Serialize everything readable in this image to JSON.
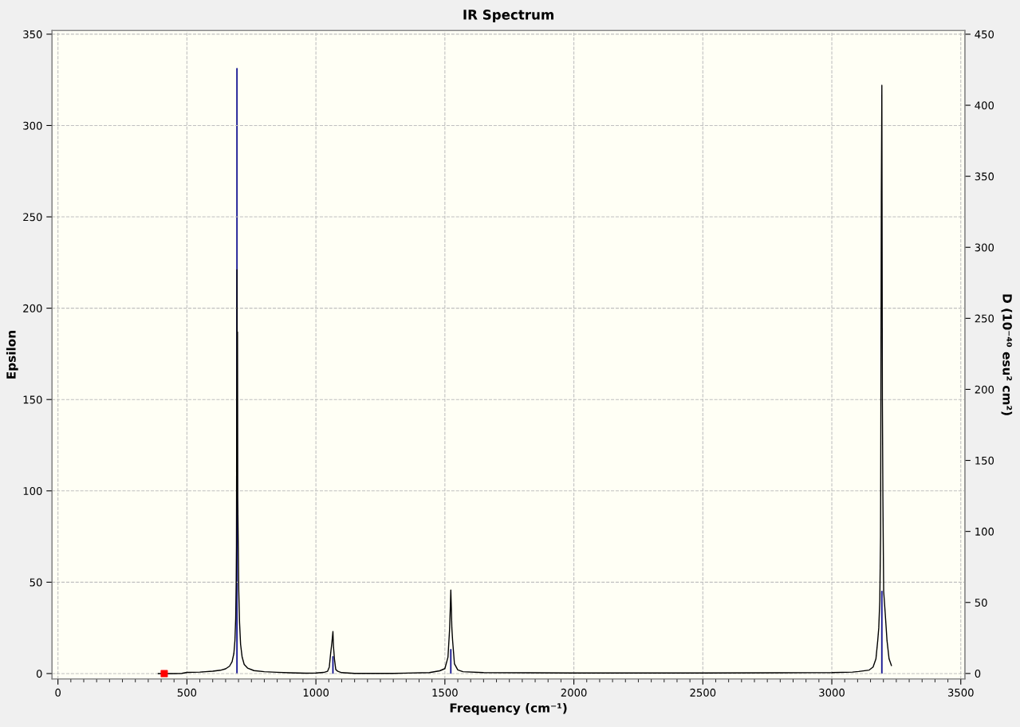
{
  "chart_data": {
    "type": "line",
    "title": "IR Spectrum",
    "xlabel": "Frequency (cm⁻¹)",
    "ylabel": "Epsilon",
    "y2label": "D (10⁻⁴⁰ esu² cm²)",
    "xlim": [
      -23,
      3516
    ],
    "ylim": [
      -3,
      352
    ],
    "y2lim": [
      -3.9,
      452.6
    ],
    "xticks": [
      0,
      {
        "value": 50,
        "label": null
      },
      {
        "value": 100,
        "label": null
      },
      {
        "value": 150,
        "label": null
      },
      {
        "value": 200,
        "label": null
      },
      {
        "value": 250,
        "label": null
      },
      {
        "value": 300,
        "label": null
      },
      {
        "value": 350,
        "label": null
      },
      {
        "value": 400,
        "label": null
      },
      {
        "value": 450,
        "label": null
      },
      500,
      {
        "value": 550,
        "label": null
      },
      {
        "value": 600,
        "label": null
      },
      {
        "value": 650,
        "label": null
      },
      {
        "value": 700,
        "label": null
      },
      {
        "value": 750,
        "label": null
      },
      {
        "value": 800,
        "label": null
      },
      {
        "value": 850,
        "label": null
      },
      {
        "value": 900,
        "label": null
      },
      {
        "value": 950,
        "label": null
      },
      1000,
      {
        "value": 1050,
        "label": null
      },
      {
        "value": 1100,
        "label": null
      },
      {
        "value": 1150,
        "label": null
      },
      {
        "value": 1200,
        "label": null
      },
      {
        "value": 1250,
        "label": null
      },
      {
        "value": 1300,
        "label": null
      },
      {
        "value": 1350,
        "label": null
      },
      {
        "value": 1400,
        "label": null
      },
      {
        "value": 1450,
        "label": null
      },
      1500,
      {
        "value": 1550,
        "label": null
      },
      {
        "value": 1600,
        "label": null
      },
      {
        "value": 1650,
        "label": null
      },
      {
        "value": 1700,
        "label": null
      },
      {
        "value": 1750,
        "label": null
      },
      {
        "value": 1800,
        "label": null
      },
      {
        "value": 1850,
        "label": null
      },
      {
        "value": 1900,
        "label": null
      },
      {
        "value": 1950,
        "label": null
      },
      2000,
      {
        "value": 2050,
        "label": null
      },
      {
        "value": 2100,
        "label": null
      },
      {
        "value": 2150,
        "label": null
      },
      {
        "value": 2200,
        "label": null
      },
      {
        "value": 2250,
        "label": null
      },
      {
        "value": 2300,
        "label": null
      },
      {
        "value": 2350,
        "label": null
      },
      {
        "value": 2400,
        "label": null
      },
      {
        "value": 2450,
        "label": null
      },
      2500,
      {
        "value": 2550,
        "label": null
      },
      {
        "value": 2600,
        "label": null
      },
      {
        "value": 2650,
        "label": null
      },
      {
        "value": 2700,
        "label": null
      },
      {
        "value": 2750,
        "label": null
      },
      {
        "value": 2800,
        "label": null
      },
      {
        "value": 2850,
        "label": null
      },
      {
        "value": 2900,
        "label": null
      },
      {
        "value": 2950,
        "label": null
      },
      3000,
      {
        "value": 3050,
        "label": null
      },
      {
        "value": 3100,
        "label": null
      },
      {
        "value": 3150,
        "label": null
      },
      {
        "value": 3200,
        "label": null
      },
      {
        "value": 3250,
        "label": null
      },
      {
        "value": 3300,
        "label": null
      },
      {
        "value": 3350,
        "label": null
      },
      {
        "value": 3400,
        "label": null
      },
      {
        "value": 3450,
        "label": null
      },
      3500
    ],
    "yticks": [
      0,
      50,
      100,
      150,
      200,
      250,
      300,
      350
    ],
    "y2ticks": [
      0,
      50,
      100,
      150,
      200,
      250,
      300,
      350,
      400,
      450
    ],
    "grid": true,
    "series": [
      {
        "type": "bar",
        "axis": "y2",
        "color": "#00008b",
        "x": [
          694,
          1066,
          1523,
          3194
        ],
        "values": [
          426,
          12,
          17,
          58
        ]
      },
      {
        "axis": "y",
        "color": "#000000",
        "x": [
          389,
          450,
          480,
          500,
          550,
          600,
          630,
          650,
          665,
          675,
          682,
          686,
          689,
          691,
          692,
          693,
          694,
          695,
          696,
          697,
          699,
          701,
          704,
          708,
          714,
          722,
          735,
          760,
          800,
          850,
          900,
          960,
          1000,
          1030,
          1045,
          1052,
          1057,
          1062,
          1066,
          1068,
          1072,
          1077,
          1085,
          1100,
          1150,
          1300,
          1440,
          1480,
          1500,
          1512,
          1518,
          1521,
          1523,
          1525,
          1527,
          1530,
          1537,
          1550,
          1570,
          1650,
          2000,
          2500,
          2800,
          3000,
          3080,
          3104,
          3145,
          3160,
          3171,
          3178,
          3182,
          3186,
          3189,
          3192,
          3194,
          3196,
          3198,
          3201,
          3207,
          3214,
          3222,
          3231
        ],
        "values": [
          0.0,
          0.0,
          0.1,
          0.6,
          0.8,
          1.3,
          1.8,
          2.6,
          4.0,
          6.5,
          11,
          18,
          30,
          50,
          70,
          145,
          221,
          145,
          187,
          96,
          70,
          45,
          28,
          16,
          9,
          5,
          3,
          1.6,
          1.0,
          0.7,
          0.4,
          0.2,
          0.3,
          0.6,
          1.2,
          3.6,
          10.8,
          17,
          23,
          15,
          7.8,
          2.2,
          1.2,
          0.5,
          0.1,
          0.1,
          0.5,
          1.5,
          2.7,
          9,
          23.5,
          36,
          45.7,
          36,
          25,
          18,
          5.4,
          2,
          1.0,
          0.5,
          0.3,
          0.3,
          0.4,
          0.5,
          0.8,
          1.1,
          1.9,
          3.6,
          8,
          18,
          25,
          40,
          75,
          262,
          322,
          150,
          96,
          45,
          33,
          18,
          8,
          4.4
        ]
      },
      {
        "type": "scatter",
        "axis": "y",
        "color": "#ff0000",
        "marker": "square",
        "x": [
          412
        ],
        "values": [
          0
        ]
      }
    ]
  }
}
